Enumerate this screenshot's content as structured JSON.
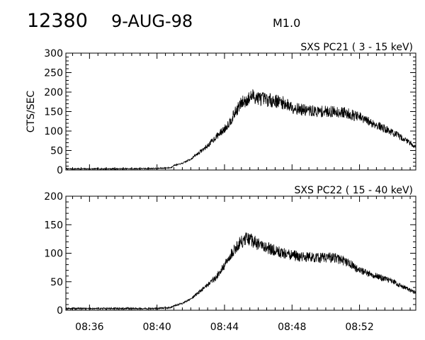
{
  "header": {
    "event_number": "12380",
    "date": "9-AUG-98",
    "flare_class": "M1.0"
  },
  "chart_data": [
    {
      "type": "line",
      "title": "SXS PC21  (  3 - 15 keV)",
      "ylabel": "CTS/SEC",
      "ylim": [
        0,
        300
      ],
      "yticks": [
        0,
        50,
        100,
        150,
        200,
        250,
        300
      ],
      "xlim": [
        "08:34:36",
        "08:55:20"
      ],
      "xticks": [],
      "series": [
        {
          "x": [
            "08:34:36",
            "08:36:00",
            "08:38:00",
            "08:40:00",
            "08:40:50",
            "08:41:00",
            "08:41:15",
            "08:41:30",
            "08:42:00",
            "08:42:30",
            "08:43:00",
            "08:43:30",
            "08:44:00",
            "08:44:20",
            "08:44:40",
            "08:45:00",
            "08:45:20",
            "08:45:40",
            "08:46:00",
            "08:46:30",
            "08:47:00",
            "08:47:30",
            "08:48:00",
            "08:48:30",
            "08:49:00",
            "08:49:30",
            "08:50:00",
            "08:50:30",
            "08:51:00",
            "08:51:30",
            "08:52:00",
            "08:52:30",
            "08:53:00",
            "08:53:30",
            "08:54:00",
            "08:54:30",
            "08:55:00",
            "08:55:20"
          ],
          "values": [
            3,
            3,
            3,
            4,
            6,
            12,
            14,
            17,
            28,
            45,
            62,
            85,
            105,
            125,
            150,
            172,
            180,
            190,
            185,
            180,
            178,
            172,
            162,
            155,
            152,
            150,
            150,
            150,
            148,
            143,
            135,
            125,
            116,
            106,
            95,
            83,
            70,
            58
          ]
        }
      ],
      "grid": false,
      "legend": "none"
    },
    {
      "type": "line",
      "title": "SXS PC22  ( 15 - 40 keV)",
      "ylabel": "",
      "ylim": [
        0,
        200
      ],
      "yticks": [
        0,
        50,
        100,
        150,
        200
      ],
      "xlim": [
        "08:34:36",
        "08:55:20"
      ],
      "xticks": [
        "08:36",
        "08:40",
        "08:44",
        "08:48",
        "08:52"
      ],
      "series": [
        {
          "x": [
            "08:34:36",
            "08:36:00",
            "08:38:00",
            "08:40:00",
            "08:40:50",
            "08:41:00",
            "08:41:15",
            "08:41:30",
            "08:42:00",
            "08:42:30",
            "08:43:00",
            "08:43:30",
            "08:44:00",
            "08:44:20",
            "08:44:40",
            "08:45:00",
            "08:45:20",
            "08:45:40",
            "08:46:00",
            "08:46:30",
            "08:47:00",
            "08:47:30",
            "08:48:00",
            "08:48:30",
            "08:49:00",
            "08:49:30",
            "08:50:00",
            "08:50:30",
            "08:51:00",
            "08:51:30",
            "08:52:00",
            "08:52:30",
            "08:53:00",
            "08:53:30",
            "08:54:00",
            "08:54:30",
            "08:55:00",
            "08:55:20"
          ],
          "values": [
            3,
            3,
            3,
            3,
            5,
            8,
            10,
            12,
            20,
            32,
            45,
            58,
            78,
            95,
            110,
            120,
            125,
            122,
            115,
            110,
            105,
            100,
            96,
            94,
            93,
            92,
            92,
            92,
            88,
            80,
            70,
            65,
            60,
            55,
            50,
            42,
            35,
            30
          ]
        }
      ],
      "grid": false,
      "legend": "none"
    }
  ]
}
